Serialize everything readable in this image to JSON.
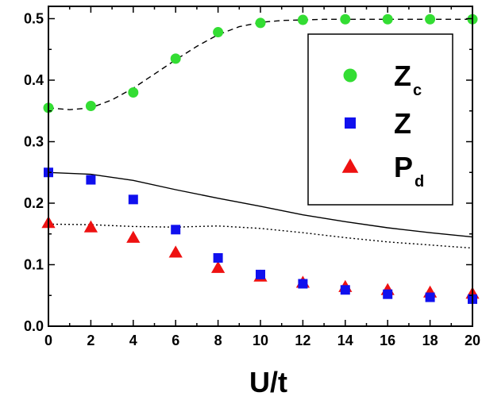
{
  "chart_data": {
    "type": "scatter",
    "xlabel": "U/t",
    "ylabel": "",
    "xlim": [
      0,
      20
    ],
    "ylim": [
      0,
      0.52
    ],
    "x_ticks": [
      0,
      2,
      4,
      6,
      8,
      10,
      12,
      14,
      16,
      18,
      20
    ],
    "x_tick_labels": [
      "0",
      "2",
      "4",
      "6",
      "8",
      "10",
      "12",
      "14",
      "16",
      "18",
      "20"
    ],
    "y_ticks": [
      0.0,
      0.1,
      0.2,
      0.3,
      0.4,
      0.5
    ],
    "y_tick_labels": [
      "0.0",
      "0.1",
      "0.2",
      "0.3",
      "0.4",
      "0.5"
    ],
    "grid": false,
    "legend_position": "top-right",
    "series": [
      {
        "name": "Zc",
        "label_main": "Z",
        "label_sub": "c",
        "marker": "circle",
        "color": "#33dd33",
        "x": [
          0,
          2,
          4,
          6,
          8,
          10,
          12,
          14,
          16,
          18,
          20
        ],
        "y": [
          0.355,
          0.358,
          0.38,
          0.435,
          0.478,
          0.493,
          0.498,
          0.499,
          0.499,
          0.499,
          0.499
        ]
      },
      {
        "name": "Z",
        "label_main": "Z",
        "label_sub": "",
        "marker": "square",
        "color": "#1010ee",
        "x": [
          0,
          2,
          4,
          6,
          8,
          10,
          12,
          14,
          16,
          18,
          20
        ],
        "y": [
          0.25,
          0.238,
          0.206,
          0.157,
          0.111,
          0.084,
          0.069,
          0.059,
          0.052,
          0.047,
          0.044
        ]
      },
      {
        "name": "Pd",
        "label_main": "P",
        "label_sub": "d",
        "marker": "triangle",
        "color": "#ee1111",
        "x": [
          0,
          2,
          4,
          6,
          8,
          10,
          12,
          14,
          16,
          18,
          20
        ],
        "y": [
          0.168,
          0.161,
          0.144,
          0.12,
          0.095,
          0.081,
          0.071,
          0.064,
          0.059,
          0.055,
          0.053
        ]
      }
    ],
    "lines": [
      {
        "style": "dashed",
        "color": "#000000",
        "x": [
          0,
          1,
          2,
          3,
          4,
          5,
          6,
          7,
          8,
          9,
          10,
          11,
          12,
          13,
          14,
          16,
          18,
          20
        ],
        "y": [
          0.355,
          0.352,
          0.355,
          0.368,
          0.387,
          0.41,
          0.433,
          0.455,
          0.474,
          0.487,
          0.494,
          0.497,
          0.498,
          0.499,
          0.499,
          0.499,
          0.499,
          0.499
        ]
      },
      {
        "style": "solid",
        "color": "#000000",
        "x": [
          0,
          2,
          4,
          6,
          8,
          10,
          12,
          14,
          16,
          18,
          20
        ],
        "y": [
          0.25,
          0.247,
          0.237,
          0.222,
          0.208,
          0.195,
          0.181,
          0.17,
          0.16,
          0.152,
          0.145
        ]
      },
      {
        "style": "dotted",
        "color": "#000000",
        "x": [
          0,
          2,
          4,
          6,
          7,
          8,
          10,
          12,
          14,
          16,
          18,
          20
        ],
        "y": [
          0.166,
          0.165,
          0.162,
          0.161,
          0.162,
          0.163,
          0.159,
          0.152,
          0.144,
          0.137,
          0.132,
          0.127
        ]
      }
    ]
  }
}
